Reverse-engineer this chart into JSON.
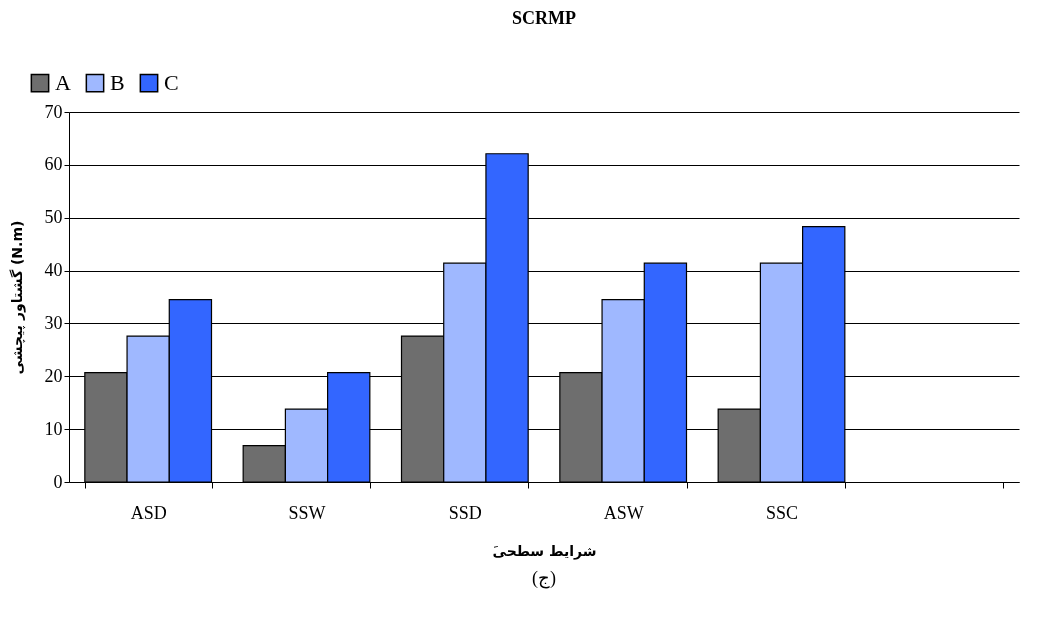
{
  "chart_data": {
    "type": "bar",
    "title": "SCRMP",
    "xlabel": "َشرایط سطحی",
    "ylabel": "گشتاور پیچشی (N.m)",
    "annotations": [
      "(ج)"
    ],
    "categories": [
      "ASD",
      "SSW",
      "SSD",
      "ASW",
      "SSC",
      null
    ],
    "series": [
      {
        "name": "A",
        "color": "#6e6e6e",
        "values": [
          20.7,
          6.9,
          27.6,
          20.7,
          13.8,
          null
        ]
      },
      {
        "name": "B",
        "color": "#9fb8ff",
        "values": [
          27.6,
          13.8,
          41.4,
          34.5,
          41.4,
          null
        ]
      },
      {
        "name": "C",
        "color": "#3366ff",
        "values": [
          34.5,
          20.7,
          62.1,
          41.4,
          48.3,
          null
        ]
      }
    ],
    "ylim": [
      0,
      70
    ],
    "yticks": [
      0,
      10,
      20,
      30,
      40,
      50,
      60,
      70
    ],
    "grid": "y",
    "legend": "top left"
  }
}
